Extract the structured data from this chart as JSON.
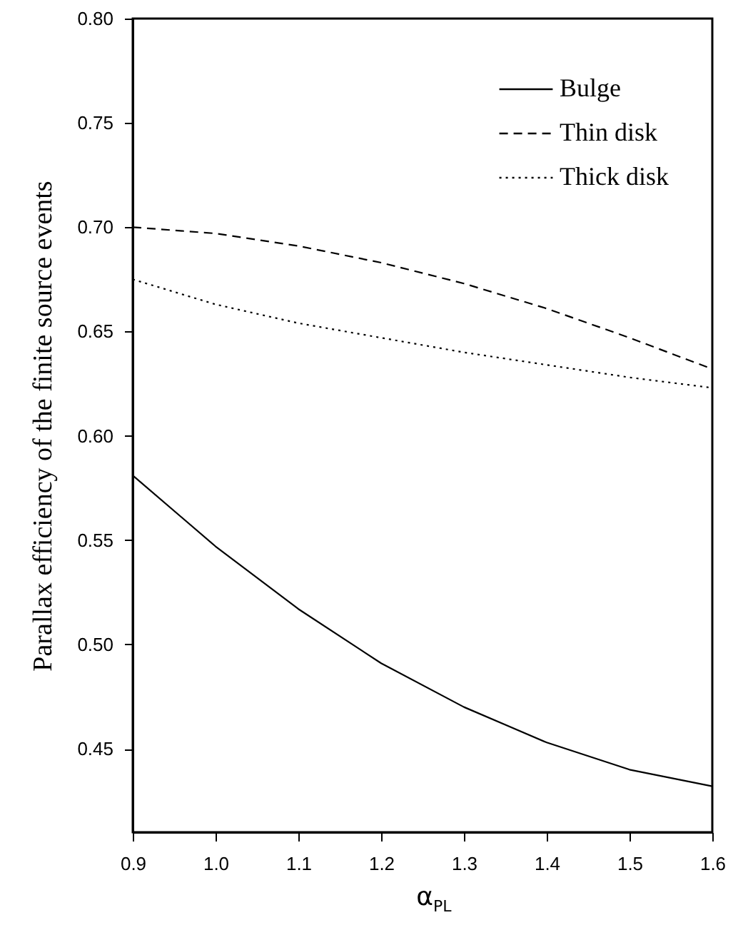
{
  "chart_data": {
    "type": "line",
    "xlabel": "α$_{PL}$",
    "ylabel": "Parallax efficiency of the finite source events",
    "x": [
      0.9,
      1.0,
      1.1,
      1.2,
      1.3,
      1.4,
      1.5,
      1.6
    ],
    "series": [
      {
        "name": "Bulge",
        "color": "#000000",
        "line_style": "solid",
        "values": [
          0.581,
          0.547,
          0.517,
          0.491,
          0.47,
          0.453,
          0.44,
          0.432
        ]
      },
      {
        "name": "Thin disk",
        "color": "#000000",
        "line_style": "dashed",
        "values": [
          0.7,
          0.697,
          0.691,
          0.683,
          0.673,
          0.661,
          0.647,
          0.632
        ]
      },
      {
        "name": "Thick disk",
        "color": "#000000",
        "line_style": "dotted",
        "values": [
          0.675,
          0.663,
          0.654,
          0.647,
          0.64,
          0.634,
          0.628,
          0.623
        ]
      }
    ],
    "xlim": [
      0.9,
      1.6
    ],
    "xticks": [
      0.9,
      {
        "value": 1.0,
        "label": "1.0"
      },
      1.1,
      1.2,
      1.3,
      1.4,
      1.5,
      1.6
    ],
    "ylim": [
      0.41,
      0.8
    ],
    "yticks": [
      0.45,
      {
        "value": 0.5,
        "label": "0.50"
      },
      0.55,
      {
        "value": 0.6,
        "label": "0.60"
      },
      0.65,
      {
        "value": 0.7,
        "label": "0.70"
      },
      0.75,
      {
        "value": 0.8,
        "label": "0.80"
      }
    ],
    "legend": "top right",
    "grid": false,
    "marker": "none"
  }
}
